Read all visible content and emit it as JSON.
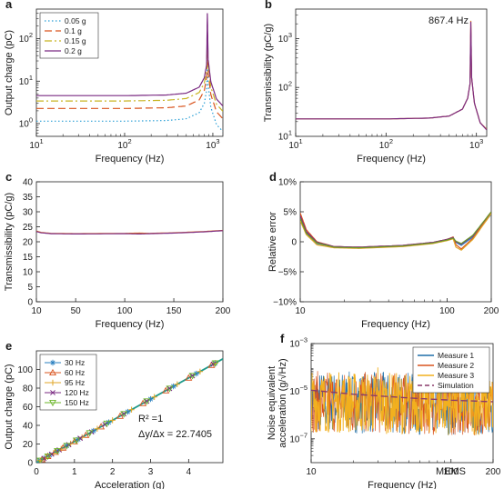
{
  "watermark": "MEMS",
  "chart_data": [
    {
      "panel": "a",
      "type": "line",
      "xscale": "log",
      "yscale": "log",
      "xlim": [
        10,
        1300
      ],
      "ylim": [
        0.5,
        500
      ],
      "xlabel": "Frequency (Hz)",
      "ylabel": "Output charge (pC)",
      "xticks": [
        10,
        100,
        1000
      ],
      "xticklabels": [
        "10^1",
        "10^2",
        "10^3"
      ],
      "yticks": [
        1,
        10,
        100
      ],
      "yticklabels": [
        "10^0",
        "10^1",
        "10^2"
      ],
      "legend_position": "top-left",
      "series": [
        {
          "name": "0.05 g",
          "color": "#2a9fd6",
          "dash": "1.5,2.5",
          "values": [
            [
              10,
              1.14
            ],
            [
              100,
              1.14
            ],
            [
              300,
              1.18
            ],
            [
              500,
              1.3
            ],
            [
              700,
              1.8
            ],
            [
              800,
              3.0
            ],
            [
              850,
              6.0
            ],
            [
              867,
              22
            ],
            [
              885,
              8
            ],
            [
              950,
              2.4
            ],
            [
              1100,
              0.95
            ],
            [
              1300,
              0.65
            ]
          ]
        },
        {
          "name": "0.1 g",
          "color": "#d9541e",
          "dash": "8,4",
          "values": [
            [
              10,
              2.27
            ],
            [
              100,
              2.27
            ],
            [
              300,
              2.36
            ],
            [
              500,
              2.6
            ],
            [
              700,
              3.6
            ],
            [
              800,
              6.0
            ],
            [
              850,
              12
            ],
            [
              867,
              45
            ],
            [
              885,
              16
            ],
            [
              950,
              4.8
            ],
            [
              1100,
              1.9
            ],
            [
              1300,
              1.3
            ]
          ]
        },
        {
          "name": "0.15 g",
          "color": "#c8b422",
          "dash": "8,3,2,3",
          "values": [
            [
              10,
              3.41
            ],
            [
              100,
              3.41
            ],
            [
              300,
              3.54
            ],
            [
              500,
              3.9
            ],
            [
              700,
              5.4
            ],
            [
              800,
              9.0
            ],
            [
              850,
              18
            ],
            [
              867,
              70
            ],
            [
              885,
              24
            ],
            [
              950,
              7.2
            ],
            [
              1100,
              2.85
            ],
            [
              1300,
              1.95
            ]
          ]
        },
        {
          "name": "0.2 g",
          "color": "#7a2a82",
          "dash": "",
          "values": [
            [
              10,
              4.55
            ],
            [
              100,
              4.55
            ],
            [
              300,
              4.72
            ],
            [
              500,
              5.2
            ],
            [
              700,
              7.2
            ],
            [
              800,
              12
            ],
            [
              850,
              24
            ],
            [
              867,
              400
            ],
            [
              885,
              32
            ],
            [
              950,
              9.6
            ],
            [
              1100,
              3.8
            ],
            [
              1300,
              2.6
            ]
          ]
        }
      ]
    },
    {
      "panel": "b",
      "type": "line",
      "xscale": "log",
      "yscale": "log",
      "xlim": [
        10,
        1300
      ],
      "ylim": [
        10,
        4000
      ],
      "xlabel": "Frequency (Hz)",
      "ylabel": "Transmissibility (pC/g)",
      "xticks": [
        10,
        100,
        1000
      ],
      "xticklabels": [
        "10^1",
        "10^2",
        "10^3"
      ],
      "yticks": [
        10,
        100,
        1000
      ],
      "yticklabels": [
        "10^1",
        "10^2",
        "10^3"
      ],
      "annotation": "867.4 Hz",
      "series": [
        {
          "color": "#e0742a",
          "values": [
            [
              10,
              22.7
            ],
            [
              100,
              22.7
            ],
            [
              300,
              23.6
            ],
            [
              500,
              26
            ],
            [
              700,
              36
            ],
            [
              800,
              60
            ],
            [
              850,
              120
            ],
            [
              867.4,
              2300
            ],
            [
              885,
              160
            ],
            [
              950,
              48
            ],
            [
              1100,
              19
            ],
            [
              1300,
              14
            ]
          ]
        },
        {
          "color": "#7a2a82",
          "values": [
            [
              10,
              22.7
            ],
            [
              100,
              22.7
            ],
            [
              300,
              23.6
            ],
            [
              500,
              26
            ],
            [
              700,
              36
            ],
            [
              800,
              60
            ],
            [
              850,
              120
            ],
            [
              867.4,
              2200
            ],
            [
              885,
              160
            ],
            [
              950,
              48
            ],
            [
              1100,
              19
            ],
            [
              1300,
              13.5
            ]
          ]
        }
      ]
    },
    {
      "panel": "c",
      "type": "line",
      "xscale": "linear",
      "yscale": "linear",
      "xlim": [
        10,
        200
      ],
      "ylim": [
        0,
        40
      ],
      "xlabel": "Frequency (Hz)",
      "ylabel": "Transmissibility (pC/g)",
      "xticks": [
        10,
        50,
        100,
        150,
        200
      ],
      "xticklabels": [
        "10",
        "50",
        "100",
        "150",
        "200"
      ],
      "yticks": [
        0,
        5,
        10,
        15,
        20,
        25,
        30,
        35,
        40
      ],
      "yticklabels": [
        "0",
        "5",
        "10",
        "15",
        "20",
        "25",
        "30",
        "35",
        "40"
      ],
      "series": [
        {
          "color": "#e0742a",
          "values": [
            [
              10,
              23.6
            ],
            [
              15,
              23.1
            ],
            [
              25,
              22.8
            ],
            [
              50,
              22.7
            ],
            [
              100,
              22.8
            ],
            [
              115,
              22.9
            ],
            [
              125,
              22.8
            ],
            [
              150,
              23.0
            ],
            [
              180,
              23.4
            ],
            [
              200,
              23.8
            ]
          ]
        },
        {
          "color": "#7a2a82",
          "values": [
            [
              10,
              23.4
            ],
            [
              15,
              23.0
            ],
            [
              25,
              22.7
            ],
            [
              50,
              22.6
            ],
            [
              100,
              22.7
            ],
            [
              115,
              22.6
            ],
            [
              125,
              22.7
            ],
            [
              150,
              22.9
            ],
            [
              180,
              23.3
            ],
            [
              200,
              23.7
            ]
          ]
        }
      ]
    },
    {
      "panel": "d",
      "type": "line",
      "xscale": "log",
      "yscale": "linear",
      "xlim": [
        10,
        200
      ],
      "ylim": [
        -10,
        10
      ],
      "xlabel": "Frequency (Hz)",
      "ylabel": "Relative error",
      "xticks": [
        10,
        100,
        200
      ],
      "xticklabels": [
        "10",
        "100",
        "200"
      ],
      "yticks": [
        -10,
        -5,
        0,
        5,
        10
      ],
      "yticklabels": [
        "−10%",
        "−5%",
        "0",
        "5%",
        "10%"
      ],
      "series": [
        {
          "color": "#2a7fbf",
          "values": [
            [
              10,
              4.0
            ],
            [
              11,
              1.5
            ],
            [
              13,
              -0.3
            ],
            [
              17,
              -0.9
            ],
            [
              25,
              -1.0
            ],
            [
              50,
              -0.7
            ],
            [
              80,
              -0.2
            ],
            [
              100,
              0.3
            ],
            [
              110,
              0.6
            ],
            [
              115,
              -0.1
            ],
            [
              125,
              -0.6
            ],
            [
              150,
              0.8
            ],
            [
              200,
              4.6
            ]
          ]
        },
        {
          "color": "#d9541e",
          "values": [
            [
              10,
              4.8
            ],
            [
              11,
              2.0
            ],
            [
              13,
              0.0
            ],
            [
              17,
              -0.8
            ],
            [
              25,
              -0.9
            ],
            [
              50,
              -0.6
            ],
            [
              80,
              -0.1
            ],
            [
              100,
              0.4
            ],
            [
              110,
              0.8
            ],
            [
              115,
              -0.5
            ],
            [
              125,
              -1.2
            ],
            [
              150,
              0.6
            ],
            [
              200,
              4.9
            ]
          ]
        },
        {
          "color": "#e0a526",
          "values": [
            [
              10,
              3.5
            ],
            [
              11,
              1.2
            ],
            [
              13,
              -0.5
            ],
            [
              17,
              -1.0
            ],
            [
              25,
              -1.1
            ],
            [
              50,
              -0.8
            ],
            [
              80,
              -0.3
            ],
            [
              100,
              0.2
            ],
            [
              110,
              0.5
            ],
            [
              115,
              -0.9
            ],
            [
              125,
              -1.4
            ],
            [
              150,
              0.4
            ],
            [
              200,
              4.7
            ]
          ]
        },
        {
          "color": "#7a2a82",
          "values": [
            [
              10,
              4.3
            ],
            [
              11,
              1.7
            ],
            [
              13,
              -0.1
            ],
            [
              17,
              -0.8
            ],
            [
              25,
              -0.9
            ],
            [
              50,
              -0.6
            ],
            [
              80,
              -0.1
            ],
            [
              100,
              0.4
            ],
            [
              110,
              0.7
            ],
            [
              115,
              0.0
            ],
            [
              125,
              -0.4
            ],
            [
              150,
              1.0
            ],
            [
              200,
              5.0
            ]
          ]
        },
        {
          "color": "#6b9a2a",
          "values": [
            [
              10,
              3.9
            ],
            [
              11,
              1.4
            ],
            [
              13,
              -0.2
            ],
            [
              17,
              -0.9
            ],
            [
              25,
              -1.0
            ],
            [
              50,
              -0.7
            ],
            [
              80,
              -0.2
            ],
            [
              100,
              0.3
            ],
            [
              110,
              0.6
            ],
            [
              115,
              0.1
            ],
            [
              125,
              -0.3
            ],
            [
              150,
              1.1
            ],
            [
              200,
              5.0
            ]
          ]
        }
      ]
    },
    {
      "panel": "e",
      "type": "scatter",
      "xscale": "linear",
      "yscale": "linear",
      "xlim": [
        0,
        4.9
      ],
      "ylim": [
        0,
        120
      ],
      "xlabel": "Acceleration (g)",
      "ylabel": "Output charge (pC)",
      "xticks": [
        0,
        1,
        2,
        3,
        4
      ],
      "xticklabels": [
        "0",
        "1",
        "2",
        "3",
        "4"
      ],
      "yticks": [
        0,
        20,
        40,
        60,
        80,
        100
      ],
      "yticklabels": [
        "0",
        "20",
        "40",
        "60",
        "80",
        "100"
      ],
      "legend_position": "top-left",
      "fit": {
        "slope": 22.7405,
        "color": "#1f9a8a"
      },
      "annotations": [
        "R² =1",
        "Δy/Δx = 22.7405"
      ],
      "series": [
        {
          "name": "30 Hz",
          "marker": "asterisk",
          "color": "#2a7fbf",
          "x": [
            0.1,
            0.2,
            0.35,
            0.55,
            0.8,
            1.1,
            1.5,
            1.9,
            2.4,
            3.0,
            3.6,
            4.2,
            4.7
          ]
        },
        {
          "name": "60 Hz",
          "marker": "triangle-up",
          "color": "#d9541e",
          "x": [
            0.15,
            0.3,
            0.5,
            0.7,
            1.0,
            1.3,
            1.7,
            2.2,
            2.8,
            3.4,
            4.0,
            4.6
          ]
        },
        {
          "name": "95 Hz",
          "marker": "plus",
          "color": "#e0a526",
          "x": [
            0.1,
            0.25,
            0.45,
            0.65,
            0.9,
            1.2,
            1.6,
            2.0,
            2.5,
            3.1,
            3.7,
            4.3,
            4.7
          ]
        },
        {
          "name": "120 Hz",
          "marker": "x",
          "color": "#7a2a82",
          "x": [
            0.2,
            0.4,
            0.6,
            0.85,
            1.15,
            1.45,
            1.8,
            2.3,
            2.9,
            3.5,
            4.1,
            4.65
          ]
        },
        {
          "name": "150 Hz",
          "marker": "triangle-down",
          "color": "#6bb52a",
          "x": [
            0.1,
            0.3,
            0.55,
            0.8,
            1.05,
            1.4,
            1.85,
            2.3,
            2.9,
            3.5,
            4.1,
            4.7
          ]
        }
      ]
    },
    {
      "panel": "f",
      "type": "line",
      "xscale": "log",
      "yscale": "log",
      "xlim": [
        10,
        200
      ],
      "ylim": [
        1e-08,
        0.001
      ],
      "xlabel": "Frequency (Hz)",
      "ylabel": "Noise equivalent acceleration (g/√Hz)",
      "ylabel_lines": [
        "Noise equivalent",
        "acceleration (g/√Hz)"
      ],
      "xticks": [
        10,
        100,
        200
      ],
      "xticklabels": [
        "10",
        "100",
        "200"
      ],
      "yticks": [
        1e-07,
        1e-05,
        0.001
      ],
      "yticklabels": [
        "10^-7",
        "10^-5",
        "10^-3"
      ],
      "legend_position": "top-right",
      "series": [
        {
          "name": "Measure 1",
          "color": "#1f6fa8",
          "kind": "noise",
          "level": 5e-06
        },
        {
          "name": "Measure 2",
          "color": "#d9541e",
          "kind": "noise",
          "level": 5e-06
        },
        {
          "name": "Measure 3",
          "color": "#f2b01e",
          "kind": "noise",
          "level": 5e-06,
          "spikes": [
            [
              30,
              0.0001
            ],
            [
              85,
              2e-05
            ],
            [
              105,
              3e-05
            ]
          ]
        },
        {
          "name": "Simulation",
          "color": "#8a3a6a",
          "kind": "dashed",
          "values": [
            [
              10,
              1.1e-05
            ],
            [
              20,
              7.5e-06
            ],
            [
              50,
              5.2e-06
            ],
            [
              100,
              4.2e-06
            ],
            [
              200,
              3.6e-06
            ]
          ]
        }
      ]
    }
  ]
}
